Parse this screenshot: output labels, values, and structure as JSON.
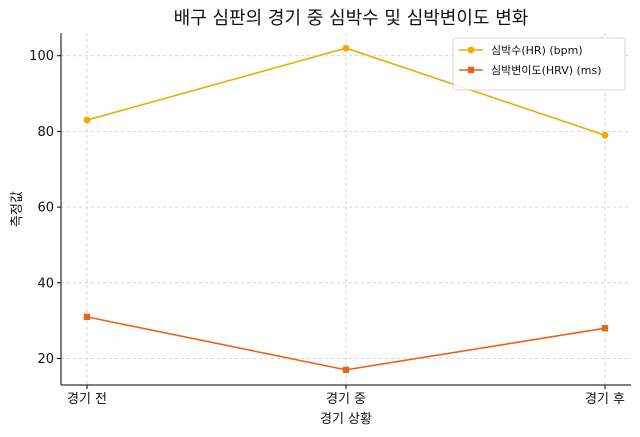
{
  "chart_data": {
    "type": "line",
    "title": "배구 심판의 경기 중 심박수 및 심박변이도 변화",
    "xlabel": "경기 상황",
    "ylabel": "측정값",
    "categories": [
      "경기 전",
      "경기 중",
      "경기 후"
    ],
    "ylim": [
      13,
      106
    ],
    "yticks": [
      20,
      40,
      60,
      80,
      100
    ],
    "grid": true,
    "legend_position": "top-right",
    "series": [
      {
        "name": "심박수(HR) (bpm)",
        "values": [
          83,
          102,
          79
        ],
        "color": "#f2a900",
        "marker": "circle"
      },
      {
        "name": "심박변이도(HRV) (ms)",
        "values": [
          31,
          17,
          28
        ],
        "color": "#e8631a",
        "marker": "square"
      }
    ]
  }
}
